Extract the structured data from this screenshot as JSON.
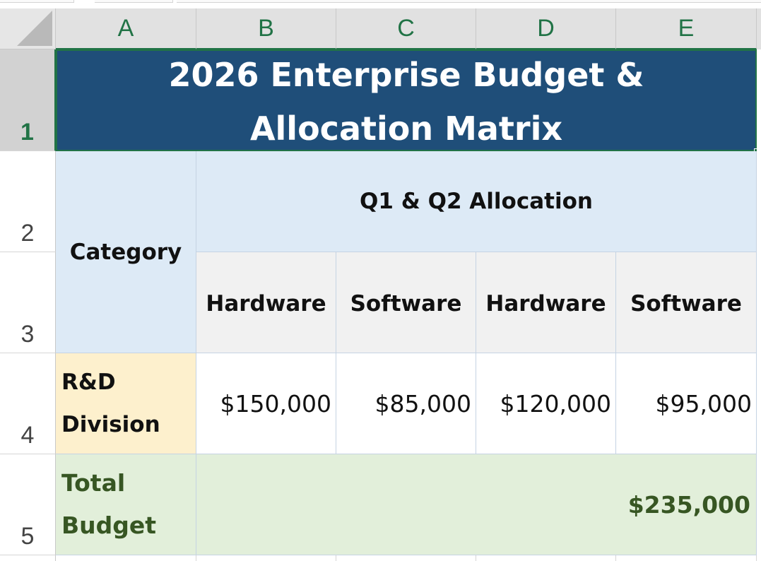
{
  "columns": [
    "A",
    "B",
    "C",
    "D",
    "E"
  ],
  "rows": [
    "1",
    "2",
    "3",
    "4",
    "5"
  ],
  "title": {
    "line1": "2026 Enterprise Budget &",
    "line2": "Allocation Matrix"
  },
  "headers": {
    "category": "Category",
    "group": "Q1 & Q2 Allocation",
    "sub": [
      "Hardware",
      "Software",
      "Hardware",
      "Software"
    ]
  },
  "rd_row": {
    "label_line1": "R&D",
    "label_line2": "Division",
    "values": [
      "$150,000",
      "$85,000",
      "$120,000",
      "$95,000"
    ]
  },
  "total_row": {
    "label_line1": "Total",
    "label_line2": "Budget",
    "value": "$235,000"
  },
  "colors": {
    "title_bg": "#1f4e79",
    "header_bg": "#ddeaf6",
    "subheader_bg": "#f1f1f1",
    "rd_bg": "#fdf0cd",
    "total_bg": "#e2efda",
    "excel_green": "#217346"
  },
  "icons": {
    "select_all": "select-all-triangle-icon"
  }
}
